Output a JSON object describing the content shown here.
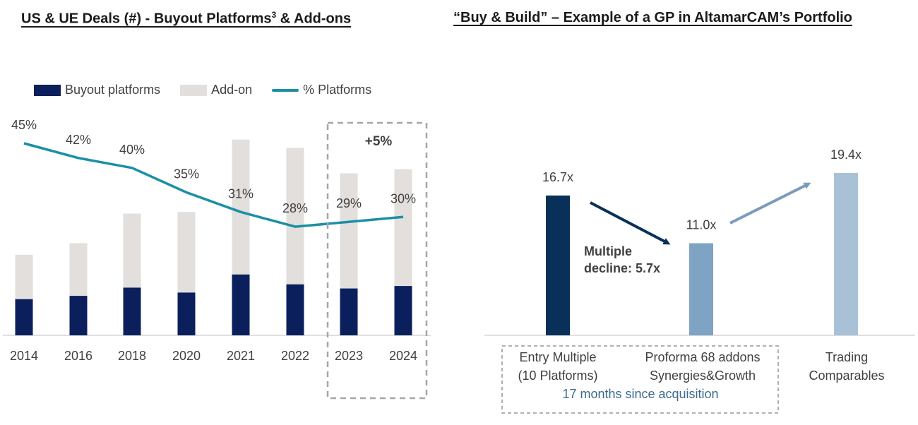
{
  "left": {
    "title": "US & UE Deals (#) -  Buyout Platforms",
    "title_sup": "3",
    "title_suffix": " & Add-ons",
    "highlight_label": "+5%"
  },
  "right": {
    "title": "“Buy & Build” – Example of a GP in AltamarCAM’s Portfolio",
    "categories": [
      [
        "Entry Multiple",
        "(10 Platforms)"
      ],
      [
        "Proforma 68 addons",
        "Synergies&Growth"
      ],
      [
        "Trading",
        "Comparables"
      ]
    ],
    "bracket_note": "17 months since acquisition",
    "decline_note": [
      "Multiple",
      "decline: 5.7x"
    ]
  },
  "colors": {
    "buyout": "#0b1f5c",
    "addon": "#e2dfdc",
    "line": "#1b8fa6",
    "entry": "#083059",
    "proforma": "#7fa3c2",
    "trading": "#a9c1d6",
    "arrow_down": "#083059",
    "arrow_up": "#7b9bbb",
    "dashed": "#a6a6a6"
  },
  "chart_data": [
    {
      "type": "bar",
      "stacked": true,
      "categories": [
        "2014",
        "2016",
        "2018",
        "2020",
        "2021",
        "2022",
        "2023",
        "2024"
      ],
      "series": [
        {
          "name": "Buyout platforms",
          "values": [
            2200,
            2400,
            2900,
            2600,
            3700,
            3100,
            2850,
            3000
          ]
        },
        {
          "name": "Add-on",
          "values": [
            2700,
            3200,
            4500,
            4900,
            8200,
            8300,
            7000,
            7100
          ]
        }
      ],
      "line_series": {
        "name": "% Platforms",
        "values": [
          45,
          42,
          40,
          35,
          31,
          28,
          29,
          30
        ],
        "labels": [
          "45%",
          "42%",
          "40%",
          "35%",
          "31%",
          "28%",
          "29%",
          "30%"
        ]
      },
      "legend_position": "top-left",
      "grid": false
    },
    {
      "type": "bar",
      "categories": [
        "Entry Multiple (10 Platforms)",
        "Proforma 68 addons Synergies&Growth",
        "Trading Comparables"
      ],
      "values": [
        16.7,
        11.0,
        19.4
      ],
      "labels": [
        "16.7x",
        "11.0x",
        "19.4x"
      ],
      "grid": false
    }
  ]
}
